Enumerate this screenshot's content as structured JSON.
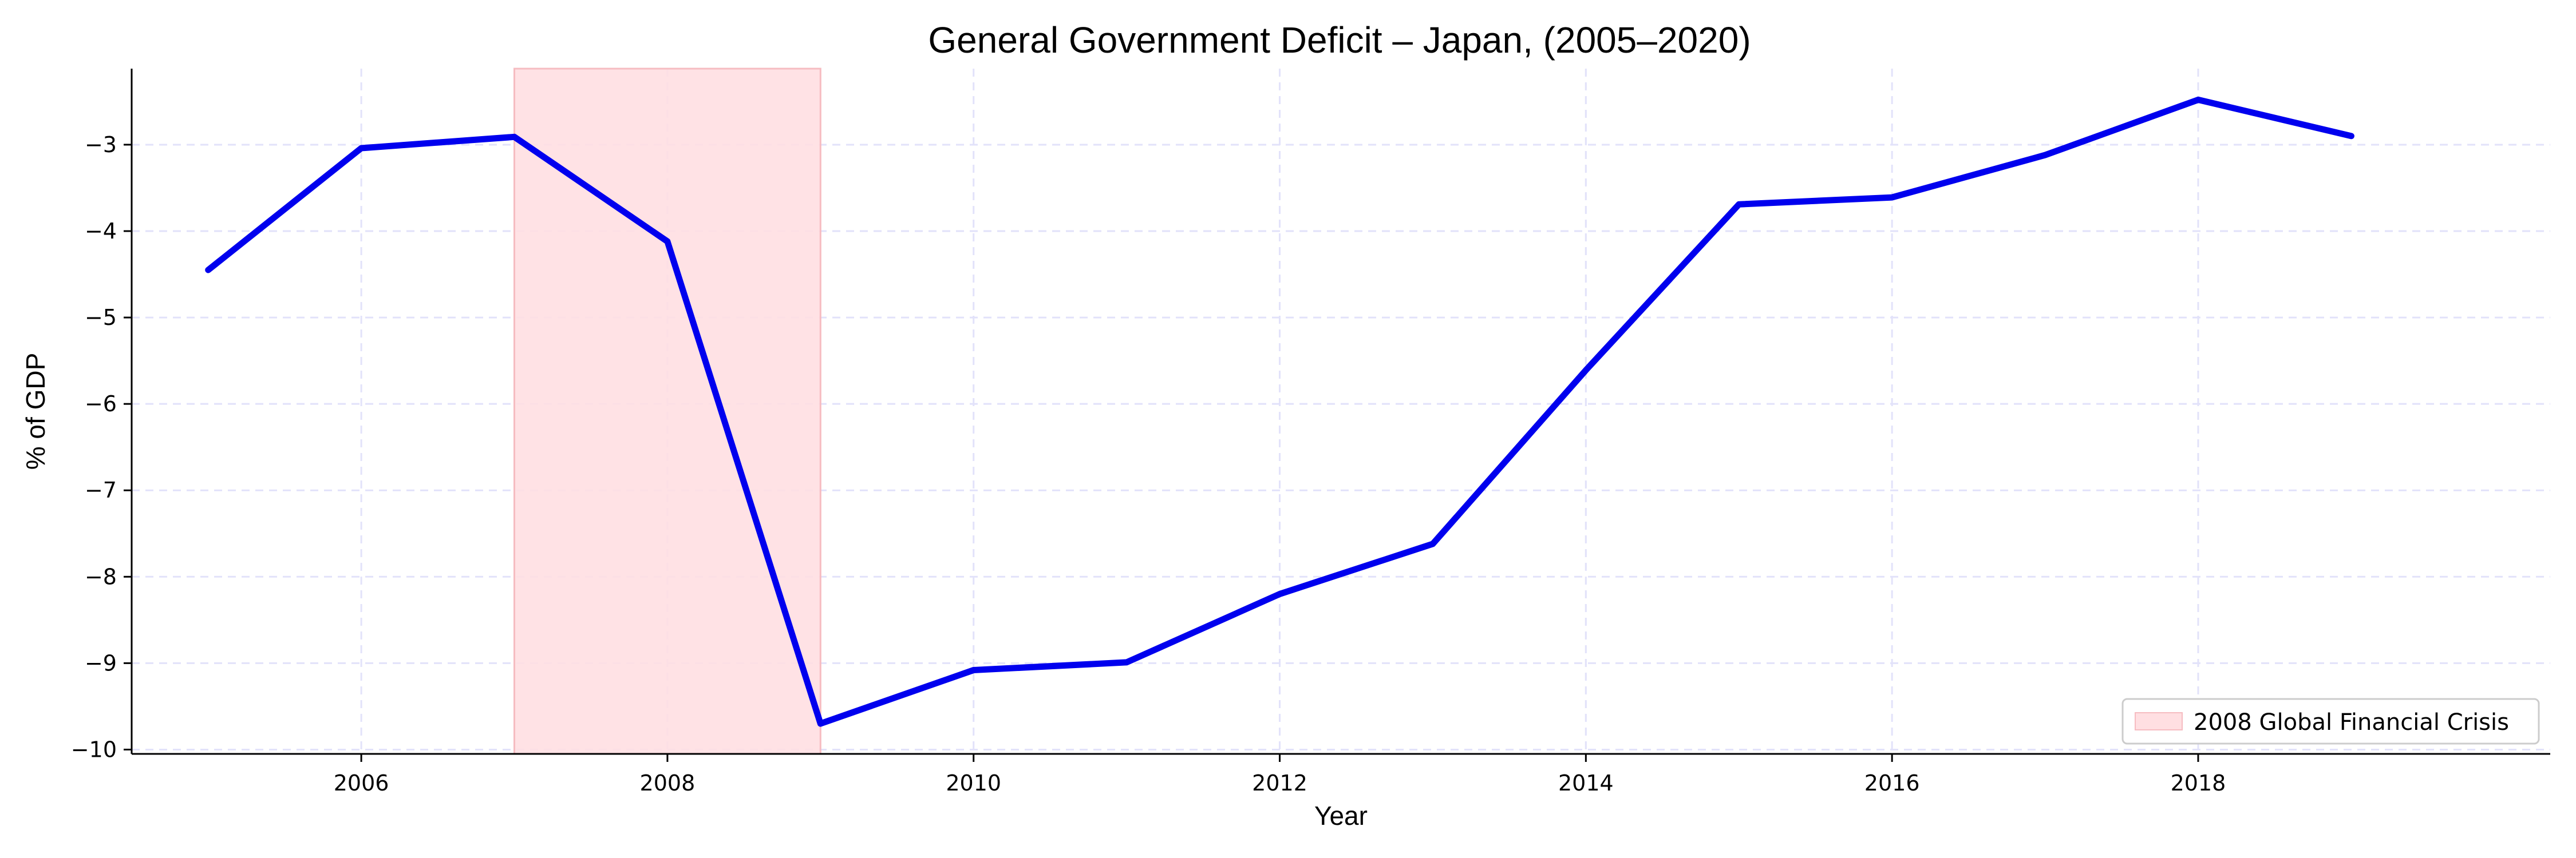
{
  "chart_data": {
    "type": "line",
    "title": "General Government Deficit – Japan, (2005–2020)",
    "xlabel": "Year",
    "ylabel": "% of GDP",
    "xlim": [
      2004.5,
      2020.3
    ],
    "ylim": [
      -10.05,
      -2.12
    ],
    "x_ticks": [
      2006,
      2008,
      2010,
      2012,
      2014,
      2016,
      2018
    ],
    "x_tick_labels": [
      "2006",
      "2008",
      "2010",
      "2012",
      "2014",
      "2016",
      "2018"
    ],
    "y_ticks": [
      -3,
      -4,
      -5,
      -6,
      -7,
      -8,
      -9,
      -10
    ],
    "y_tick_labels": [
      "−3",
      "−4",
      "−5",
      "−6",
      "−7",
      "−8",
      "−9",
      "−10"
    ],
    "grid": true,
    "legend_position": "lower-right",
    "series": [
      {
        "color": "#0000ee",
        "x": [
          2005,
          2006,
          2007,
          2008,
          2009,
          2010,
          2011,
          2012,
          2013,
          2014,
          2015,
          2016,
          2017,
          2018,
          2019
        ],
        "y": [
          -4.45,
          -3.04,
          -2.91,
          -4.12,
          -9.7,
          -9.08,
          -8.99,
          -8.2,
          -7.62,
          -5.61,
          -3.69,
          -3.61,
          -3.12,
          -2.48,
          -2.9
        ]
      }
    ],
    "shaded_regions": [
      {
        "label": "2008 Global Financial Crisis",
        "x_start": 2007,
        "x_end": 2009,
        "color": "#ffdfe2",
        "edge_color": "#f6bcc1"
      }
    ]
  }
}
